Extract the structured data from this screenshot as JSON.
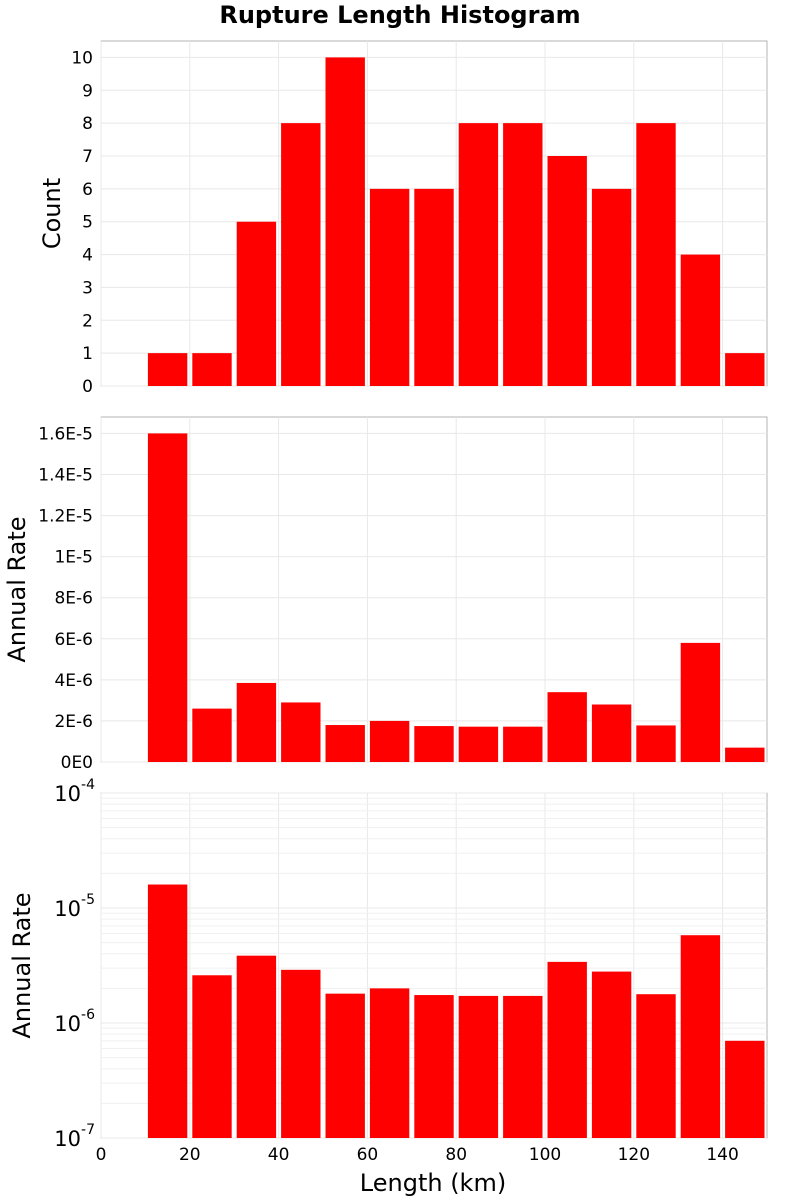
{
  "chart_data": {
    "title": "Rupture Length Histogram",
    "xlabel": "Length (km)",
    "xlim": [
      0,
      150
    ],
    "x_ticks": [
      0,
      20,
      40,
      60,
      80,
      100,
      120,
      140
    ],
    "bin_width": 10,
    "grid": true,
    "colors": {
      "bar": "#ff0000",
      "frame": "#b3b3b3",
      "grid": "#e8e8e8"
    },
    "panels": [
      {
        "type": "bar",
        "ylabel": "Count",
        "yscale": "linear",
        "ylim": [
          0,
          10.5
        ],
        "y_ticks": [
          0,
          1,
          2,
          3,
          4,
          5,
          6,
          7,
          8,
          9,
          10
        ],
        "y_tick_labels": [
          "0",
          "1",
          "2",
          "3",
          "4",
          "5",
          "6",
          "7",
          "8",
          "9",
          "10"
        ],
        "x": [
          15,
          25,
          35,
          45,
          55,
          65,
          75,
          85,
          95,
          105,
          115,
          125,
          135,
          145
        ],
        "values": [
          1,
          1,
          5,
          8,
          10,
          6,
          6,
          8,
          8,
          7,
          6,
          8,
          4,
          1
        ]
      },
      {
        "type": "bar",
        "ylabel": "Annual Rate",
        "yscale": "linear",
        "ylim": [
          0,
          1.68e-05
        ],
        "y_ticks": [
          0,
          2e-06,
          4e-06,
          6e-06,
          8e-06,
          1e-05,
          1.2e-05,
          1.4e-05,
          1.6e-05
        ],
        "y_tick_labels": [
          "0E0",
          "2E-6",
          "4E-6",
          "6E-6",
          "8E-6",
          "1E-5",
          "1.2E-5",
          "1.4E-5",
          "1.6E-5"
        ],
        "x": [
          15,
          25,
          35,
          45,
          55,
          65,
          75,
          85,
          95,
          105,
          115,
          125,
          135,
          145
        ],
        "values": [
          1.6e-05,
          2.6e-06,
          3.85e-06,
          2.9e-06,
          1.8e-06,
          2e-06,
          1.75e-06,
          1.72e-06,
          1.72e-06,
          3.4e-06,
          2.8e-06,
          1.78e-06,
          5.8e-06,
          7e-07
        ]
      },
      {
        "type": "bar",
        "ylabel": "Annual Rate",
        "yscale": "log",
        "ylim": [
          1e-07,
          0.0001
        ],
        "y_ticks": [
          1e-07,
          1e-06,
          1e-05,
          0.0001
        ],
        "y_tick_labels": [
          {
            "base": "10",
            "exp": "-7"
          },
          {
            "base": "10",
            "exp": "-6"
          },
          {
            "base": "10",
            "exp": "-5"
          },
          {
            "base": "10",
            "exp": "-4"
          }
        ],
        "x": [
          15,
          25,
          35,
          45,
          55,
          65,
          75,
          85,
          95,
          105,
          115,
          125,
          135,
          145
        ],
        "values": [
          1.6e-05,
          2.6e-06,
          3.85e-06,
          2.9e-06,
          1.8e-06,
          2e-06,
          1.75e-06,
          1.72e-06,
          1.72e-06,
          3.4e-06,
          2.8e-06,
          1.78e-06,
          5.8e-06,
          7e-07
        ]
      }
    ]
  }
}
